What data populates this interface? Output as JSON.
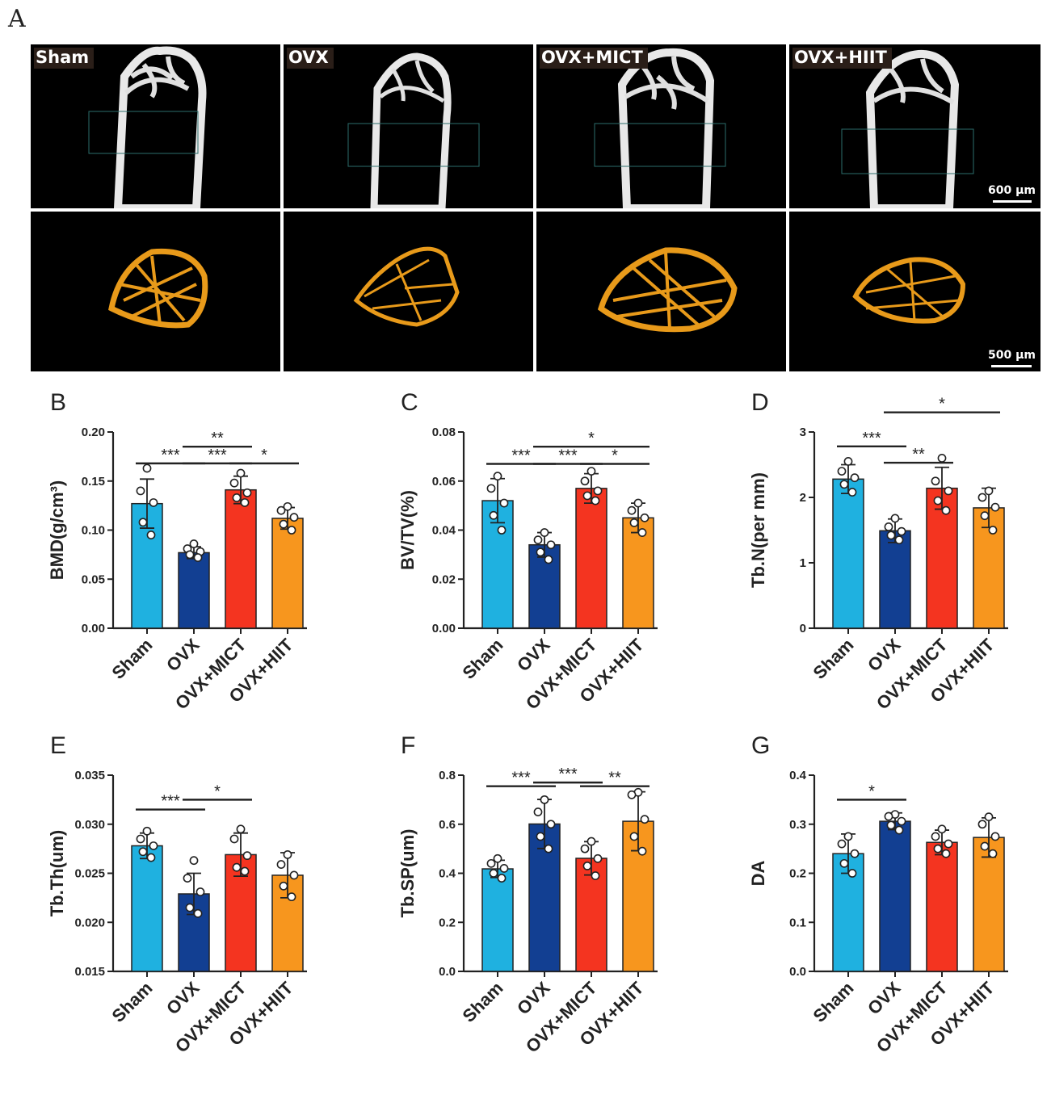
{
  "figure": {
    "panel_A_letter": "A",
    "micro_groups": [
      "Sham",
      "OVX",
      "OVX+MICT",
      "OVX+HIIT"
    ],
    "scalebar_top": "600 µm",
    "scalebar_bottom": "500 µm",
    "colors": {
      "sham": "#1fb1e0",
      "ovx": "#123f92",
      "mict": "#f43420",
      "hiit": "#f7961e",
      "bone": "#e8e8e8",
      "trabecular": "#e89a1a",
      "roi": "#2c6e6c"
    }
  },
  "chart_data": [
    {
      "type": "bar",
      "letter": "B",
      "categories": [
        "Sham",
        "OVX",
        "OVX+MICT",
        "OVX+HIIT"
      ],
      "values": [
        0.127,
        0.077,
        0.141,
        0.112
      ],
      "errors": [
        0.025,
        0.006,
        0.014,
        0.011
      ],
      "points": [
        [
          0.163,
          0.14,
          0.128,
          0.108,
          0.095
        ],
        [
          0.086,
          0.081,
          0.078,
          0.075,
          0.072
        ],
        [
          0.158,
          0.148,
          0.138,
          0.133,
          0.128
        ],
        [
          0.124,
          0.12,
          0.113,
          0.106,
          0.1
        ]
      ],
      "ylabel": "BMD(g/cm³)",
      "ylim": [
        0,
        0.2
      ],
      "yticks": [
        "0.00",
        "0.05",
        "0.10",
        "0.15",
        "0.20"
      ],
      "sig": [
        {
          "from": 0,
          "to": 1,
          "y": 0.168,
          "label": "***"
        },
        {
          "from": 1,
          "to": 2,
          "y": 0.185,
          "label": "**"
        },
        {
          "from": 1,
          "to": 2,
          "y": 0.168,
          "label": "***"
        },
        {
          "from": 2,
          "to": 3,
          "y": 0.168,
          "label": "*"
        }
      ]
    },
    {
      "type": "bar",
      "letter": "C",
      "categories": [
        "Sham",
        "OVX",
        "OVX+MICT",
        "OVX+HIIT"
      ],
      "values": [
        0.052,
        0.034,
        0.057,
        0.045
      ],
      "errors": [
        0.009,
        0.005,
        0.006,
        0.006
      ],
      "points": [
        [
          0.062,
          0.057,
          0.051,
          0.046,
          0.04
        ],
        [
          0.039,
          0.036,
          0.034,
          0.031,
          0.028
        ],
        [
          0.064,
          0.06,
          0.056,
          0.054,
          0.052
        ],
        [
          0.051,
          0.048,
          0.045,
          0.043,
          0.039
        ]
      ],
      "ylabel": "BV/TV(%)",
      "ylim": [
        0,
        0.08
      ],
      "yticks": [
        "0.00",
        "0.02",
        "0.04",
        "0.06",
        "0.08"
      ],
      "sig": [
        {
          "from": 0,
          "to": 1,
          "y": 0.067,
          "label": "***"
        },
        {
          "from": 1,
          "to": 3,
          "y": 0.074,
          "label": "*"
        },
        {
          "from": 1,
          "to": 2,
          "y": 0.067,
          "label": "***"
        },
        {
          "from": 2,
          "to": 3,
          "y": 0.067,
          "label": "*"
        }
      ]
    },
    {
      "type": "bar",
      "letter": "D",
      "categories": [
        "Sham",
        "OVX",
        "OVX+MICT",
        "OVX+HIIT"
      ],
      "values": [
        2.28,
        1.49,
        2.14,
        1.84
      ],
      "errors": [
        0.22,
        0.18,
        0.32,
        0.3
      ],
      "points": [
        [
          2.55,
          2.4,
          2.3,
          2.2,
          2.08
        ],
        [
          1.68,
          1.55,
          1.48,
          1.42,
          1.35
        ],
        [
          2.6,
          2.25,
          2.1,
          1.95,
          1.8
        ],
        [
          2.1,
          2.0,
          1.85,
          1.72,
          1.5
        ]
      ],
      "ylabel": "Tb.N(per mm)",
      "ylim": [
        0,
        3
      ],
      "yticks": [
        "0",
        "1",
        "2",
        "3"
      ],
      "sig": [
        {
          "from": 0,
          "to": 1,
          "y": 2.78,
          "label": "***"
        },
        {
          "from": 1,
          "to": 2,
          "y": 2.53,
          "label": "**"
        },
        {
          "from": 1,
          "to": 3,
          "y": 3.3,
          "label": "*"
        }
      ]
    },
    {
      "type": "bar",
      "letter": "E",
      "categories": [
        "Sham",
        "OVX",
        "OVX+MICT",
        "OVX+HIIT"
      ],
      "values": [
        0.0278,
        0.0229,
        0.0269,
        0.0248
      ],
      "errors": [
        0.0013,
        0.0021,
        0.0022,
        0.0023
      ],
      "points": [
        [
          0.0293,
          0.0285,
          0.0278,
          0.0272,
          0.0266
        ],
        [
          0.0263,
          0.0245,
          0.0231,
          0.0215,
          0.0209
        ],
        [
          0.0295,
          0.0285,
          0.0268,
          0.0256,
          0.0252
        ],
        [
          0.0269,
          0.0259,
          0.0248,
          0.0237,
          0.0226
        ]
      ],
      "ylabel": "Tb.Th(um)",
      "ylim": [
        0.015,
        0.035
      ],
      "yticks": [
        "0.015",
        "0.020",
        "0.025",
        "0.030",
        "0.035"
      ],
      "sig": [
        {
          "from": 0,
          "to": 1,
          "y": 0.0315,
          "label": "***"
        },
        {
          "from": 1,
          "to": 2,
          "y": 0.0325,
          "label": "*"
        }
      ]
    },
    {
      "type": "bar",
      "letter": "F",
      "categories": [
        "Sham",
        "OVX",
        "OVX+MICT",
        "OVX+HIIT"
      ],
      "values": [
        0.418,
        0.601,
        0.461,
        0.612
      ],
      "errors": [
        0.035,
        0.1,
        0.068,
        0.12
      ],
      "points": [
        [
          0.46,
          0.44,
          0.42,
          0.4,
          0.38
        ],
        [
          0.7,
          0.65,
          0.6,
          0.55,
          0.5
        ],
        [
          0.53,
          0.5,
          0.46,
          0.43,
          0.39
        ],
        [
          0.73,
          0.72,
          0.62,
          0.55,
          0.49
        ]
      ],
      "ylabel": "Tb.SP(um)",
      "ylim": [
        0,
        0.8
      ],
      "yticks": [
        "0.0",
        "0.2",
        "0.4",
        "0.6",
        "0.8"
      ],
      "sig": [
        {
          "from": 0,
          "to": 1,
          "y": 0.755,
          "label": "***"
        },
        {
          "from": 1,
          "to": 2,
          "y": 0.77,
          "label": "***"
        },
        {
          "from": 2,
          "to": 3,
          "y": 0.755,
          "label": "**"
        }
      ]
    },
    {
      "type": "bar",
      "letter": "G",
      "categories": [
        "Sham",
        "OVX",
        "OVX+MICT",
        "OVX+HIIT"
      ],
      "values": [
        0.24,
        0.306,
        0.263,
        0.273
      ],
      "errors": [
        0.04,
        0.017,
        0.025,
        0.04
      ],
      "points": [
        [
          0.275,
          0.26,
          0.24,
          0.22,
          0.2
        ],
        [
          0.32,
          0.316,
          0.306,
          0.298,
          0.288
        ],
        [
          0.29,
          0.275,
          0.26,
          0.25,
          0.24
        ],
        [
          0.315,
          0.3,
          0.275,
          0.255,
          0.24
        ]
      ],
      "ylabel": "DA",
      "ylim": [
        0,
        0.4
      ],
      "yticks": [
        "0.0",
        "0.1",
        "0.2",
        "0.3",
        "0.4"
      ],
      "sig": [
        {
          "from": 0,
          "to": 1,
          "y": 0.35,
          "label": "*"
        }
      ]
    }
  ]
}
